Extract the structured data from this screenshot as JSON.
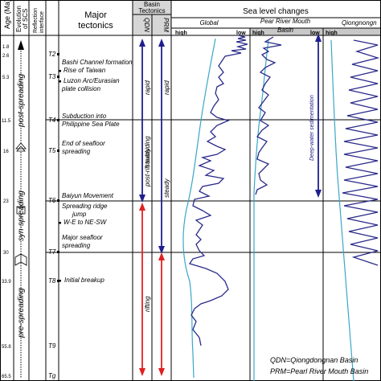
{
  "headers": {
    "age": "Age (Ma)",
    "evolution_line1": "Evolution",
    "evolution_line2": "of SCS",
    "reflection_line1": "Reflection",
    "reflection_line2": "interface",
    "major_tectonics_line1": "Major",
    "major_tectonics_line2": "tectonics",
    "basin_tectonics_line1": "Basin",
    "basin_tectonics_line2": "Tectonics",
    "qdn": "QDN",
    "prm": "PRM",
    "sea_level": "Sea level changes"
  },
  "sea_level_columns": [
    {
      "name": "Global",
      "high": "high",
      "low": "low"
    },
    {
      "name_line1": "Pear River Mouth",
      "name_line2": "Basin",
      "high": "high",
      "low": "low"
    },
    {
      "name": "Qiongnongn",
      "high": "high"
    }
  ],
  "ages": [
    "1.8",
    "2.6",
    "5.3",
    "11.5",
    "16",
    "23",
    "30",
    "33.9",
    "55.8",
    "65.5"
  ],
  "reflection_interfaces": [
    "T2",
    "T3",
    "T4",
    "T5",
    "T6",
    "T7",
    "T8",
    "T9",
    "Tg"
  ],
  "evolution_stages": [
    "post-spreading",
    "syn-spreading",
    "pre-spreading"
  ],
  "tectonic_events": [
    {
      "lines": [
        "Bashi Channel formation"
      ]
    },
    {
      "lines": [
        "Rise of Taiwan"
      ]
    },
    {
      "lines": [
        "Luzon Arc/Eurasian",
        "plate collision"
      ]
    },
    {
      "lines": [
        "Subduction into",
        "Philippine Sea Plate"
      ]
    },
    {
      "lines": [
        "End of seafloor",
        "spreading"
      ]
    },
    {
      "lines": [
        "Baiyun Movement"
      ]
    },
    {
      "lines": [
        "Spreading ridge",
        "jump"
      ]
    },
    {
      "lines": [
        "W-E to NE-SW"
      ]
    },
    {
      "lines": [
        "Major seafloor",
        "spreading"
      ]
    },
    {
      "lines": [
        "Initial breakup"
      ]
    }
  ],
  "basin_phases": {
    "qdn_post_rift": "post-rift subsiding",
    "qdn_rapid": "rapid",
    "qdn_steady": "steady",
    "prm_rapid": "rapid",
    "prm_steady": "steady",
    "rifting": "rifting"
  },
  "annotations": {
    "deep_water": "Deep-water sedimentation"
  },
  "legend": {
    "qdn": "QDN=Qiongdongnan Basin",
    "prm": "PRM=Pearl River Mouth Basin"
  },
  "colors": {
    "sea_curve": "#2a2a8a",
    "reference_curve": "#3aa6c8",
    "red_arrow": "#e02020",
    "blue_arrow": "#1f1f8f",
    "header_gray": "#c8c8c8"
  }
}
